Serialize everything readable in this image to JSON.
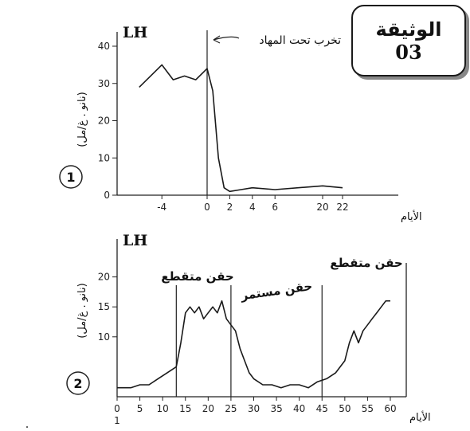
{
  "document_label": {
    "title": "الوثيقة",
    "number": "03"
  },
  "chart_data": [
    {
      "type": "line",
      "panel_number": "1",
      "title": "LH",
      "ylabel": "(نانو . غ/مل)",
      "xlabel": "الأيام",
      "ylim": [
        0,
        40
      ],
      "y_ticks": [
        "0",
        "10",
        "20",
        "30",
        "40"
      ],
      "x_ticks": [
        "-4",
        "0",
        "2",
        "4",
        "6",
        "20",
        "22"
      ],
      "annotation": "تخرب تحت المهاد",
      "event_day": 0,
      "series": [
        {
          "x": [
            -6,
            -4,
            -3,
            -2,
            -1,
            0,
            0.5,
            1,
            1.5,
            2,
            3,
            4,
            6,
            20,
            22
          ],
          "y": [
            29,
            35,
            31,
            32,
            31,
            34,
            28,
            10,
            2,
            1,
            1.5,
            2,
            1.5,
            2.5,
            2
          ]
        }
      ]
    },
    {
      "type": "line",
      "panel_number": "2",
      "title": "LH",
      "ylabel": "(نانو . غ/مل)",
      "xlabel": "الأيام",
      "ylim": [
        0,
        25
      ],
      "y_ticks": [
        "10",
        "15",
        "20"
      ],
      "x_ticks": [
        "0",
        "5",
        "10",
        "15",
        "20",
        "25",
        "30",
        "35",
        "40",
        "45",
        "50",
        "55",
        "60"
      ],
      "x_origin_label": "1",
      "annotations": [
        "حقن متقطع",
        "حقن مستمر",
        "حقن متقطع"
      ],
      "phase_lines": [
        13,
        25,
        45
      ],
      "series": [
        {
          "x": [
            0,
            3,
            5,
            7,
            9,
            11,
            13,
            14,
            15,
            16,
            17,
            18,
            19,
            20,
            21,
            22,
            23,
            24,
            25,
            26,
            27,
            28,
            29,
            30,
            32,
            34,
            36,
            38,
            40,
            42,
            44,
            46,
            48,
            50,
            51,
            52,
            53,
            54,
            55,
            56,
            57,
            58,
            59,
            60
          ],
          "y": [
            1.5,
            1.5,
            2,
            2,
            3,
            4,
            5,
            9,
            14,
            15,
            14,
            15,
            13,
            14,
            15,
            14,
            16,
            13,
            12,
            11,
            8,
            6,
            4,
            3,
            2,
            2,
            1.5,
            2,
            2,
            1.5,
            2.5,
            3,
            4,
            6,
            9,
            11,
            9,
            11,
            12,
            13,
            14,
            15,
            16,
            16
          ]
        }
      ]
    }
  ]
}
